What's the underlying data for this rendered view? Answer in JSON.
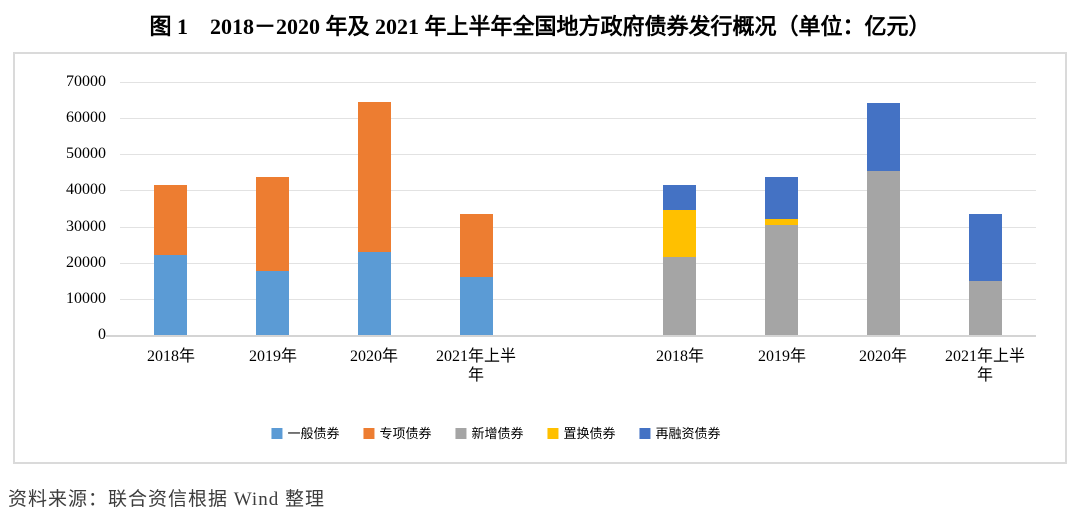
{
  "title": "图 1　2018－2020 年及 2021 年上半年全国地方政府债券发行概况（单位：亿元）",
  "source": "资料来源：联合资信根据 Wind 整理",
  "chart_data": {
    "type": "bar",
    "stacked": true,
    "unit": "亿元",
    "grid": true,
    "legend_position": "bottom",
    "ylim": [
      0,
      70000
    ],
    "ytick_step": 10000,
    "yticks": [
      0,
      10000,
      20000,
      30000,
      40000,
      50000,
      60000,
      70000
    ],
    "categories": [
      "2018年",
      "2019年",
      "2020年",
      "2021年上半年",
      "",
      "2018年",
      "2019年",
      "2020年",
      "2021年上半年"
    ],
    "series": [
      {
        "name": "一般债券",
        "color": "#5B9BD5",
        "values": [
          22200,
          17700,
          23000,
          16000,
          null,
          null,
          null,
          null,
          null
        ]
      },
      {
        "name": "专项债券",
        "color": "#ED7D31",
        "values": [
          19500,
          25900,
          41400,
          17400,
          null,
          null,
          null,
          null,
          null
        ]
      },
      {
        "name": "新增债券",
        "color": "#A5A5A5",
        "values": [
          null,
          null,
          null,
          null,
          null,
          21700,
          30500,
          45500,
          14800
        ]
      },
      {
        "name": "置换债券",
        "color": "#FFC000",
        "values": [
          null,
          null,
          null,
          null,
          null,
          13100,
          1600,
          0,
          0
        ]
      },
      {
        "name": "再融资债券",
        "color": "#4472C4",
        "values": [
          null,
          null,
          null,
          null,
          null,
          6900,
          11500,
          18900,
          18600
        ]
      }
    ],
    "group_totals": [
      41700,
      43600,
      64400,
      33400,
      null,
      41700,
      43600,
      64400,
      33400
    ]
  }
}
